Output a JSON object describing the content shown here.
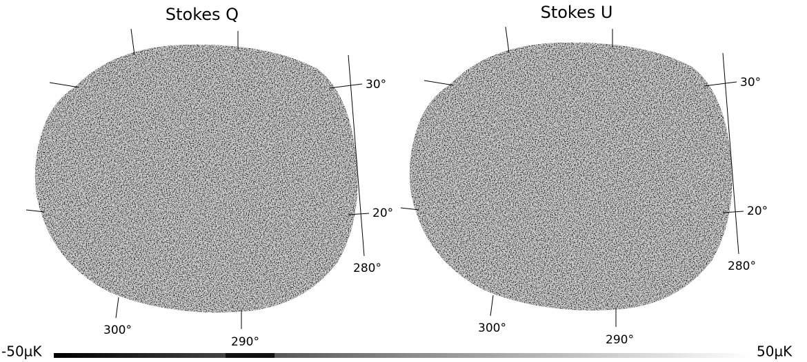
{
  "panels": [
    {
      "title": "Stokes Q",
      "labels": {
        "lat_upper": "30°",
        "lat_lower": "20°",
        "lon_right": "280°",
        "lon_left": "300°",
        "lon_mid": "290°"
      }
    },
    {
      "title": "Stokes U",
      "labels": {
        "lat_upper": "30°",
        "lat_lower": "20°",
        "lon_right": "280°",
        "lon_left": "300°",
        "lon_mid": "290°"
      }
    }
  ],
  "colorbar": {
    "min_label": "-50µK",
    "max_label": "50µK"
  }
}
